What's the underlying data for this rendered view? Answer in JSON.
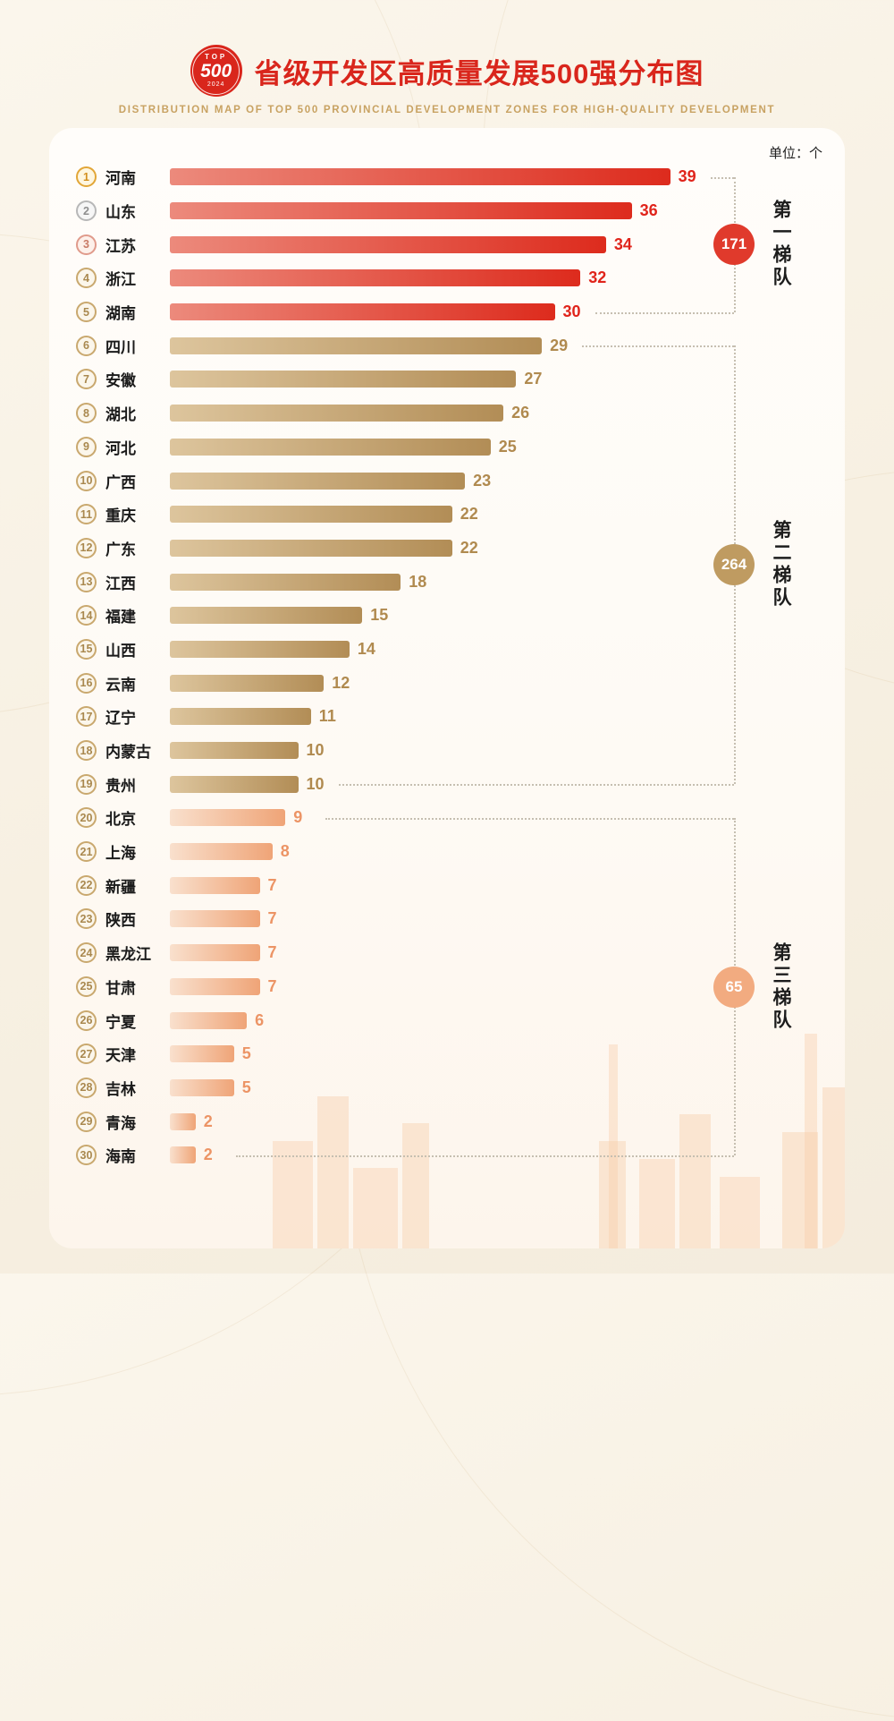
{
  "header": {
    "logo_top": "TOP",
    "logo_number": "500",
    "logo_year": "2024",
    "title": "省级开发区高质量发展500强分布图",
    "subtitle": "DISTRIBUTION MAP OF TOP 500 PROVINCIAL DEVELOPMENT ZONES FOR HIGH-QUALITY DEVELOPMENT"
  },
  "unit_label": "单位：个",
  "chart_data": {
    "type": "bar",
    "orientation": "horizontal",
    "title": "省级开发区高质量发展500强分布图",
    "unit": "个",
    "xlim": [
      0,
      39
    ],
    "rows": [
      {
        "rank": 1,
        "province": "河南",
        "value": 39,
        "tier": 1
      },
      {
        "rank": 2,
        "province": "山东",
        "value": 36,
        "tier": 1
      },
      {
        "rank": 3,
        "province": "江苏",
        "value": 34,
        "tier": 1
      },
      {
        "rank": 4,
        "province": "浙江",
        "value": 32,
        "tier": 1
      },
      {
        "rank": 5,
        "province": "湖南",
        "value": 30,
        "tier": 1
      },
      {
        "rank": 6,
        "province": "四川",
        "value": 29,
        "tier": 2
      },
      {
        "rank": 7,
        "province": "安徽",
        "value": 27,
        "tier": 2
      },
      {
        "rank": 8,
        "province": "湖北",
        "value": 26,
        "tier": 2
      },
      {
        "rank": 9,
        "province": "河北",
        "value": 25,
        "tier": 2
      },
      {
        "rank": 10,
        "province": "广西",
        "value": 23,
        "tier": 2
      },
      {
        "rank": 11,
        "province": "重庆",
        "value": 22,
        "tier": 2
      },
      {
        "rank": 12,
        "province": "广东",
        "value": 22,
        "tier": 2
      },
      {
        "rank": 13,
        "province": "江西",
        "value": 18,
        "tier": 2
      },
      {
        "rank": 14,
        "province": "福建",
        "value": 15,
        "tier": 2
      },
      {
        "rank": 15,
        "province": "山西",
        "value": 14,
        "tier": 2
      },
      {
        "rank": 16,
        "province": "云南",
        "value": 12,
        "tier": 2
      },
      {
        "rank": 17,
        "province": "辽宁",
        "value": 11,
        "tier": 2
      },
      {
        "rank": 18,
        "province": "内蒙古",
        "value": 10,
        "tier": 2
      },
      {
        "rank": 19,
        "province": "贵州",
        "value": 10,
        "tier": 2
      },
      {
        "rank": 20,
        "province": "北京",
        "value": 9,
        "tier": 3
      },
      {
        "rank": 21,
        "province": "上海",
        "value": 8,
        "tier": 3
      },
      {
        "rank": 22,
        "province": "新疆",
        "value": 7,
        "tier": 3
      },
      {
        "rank": 23,
        "province": "陕西",
        "value": 7,
        "tier": 3
      },
      {
        "rank": 24,
        "province": "黑龙江",
        "value": 7,
        "tier": 3
      },
      {
        "rank": 25,
        "province": "甘肃",
        "value": 7,
        "tier": 3
      },
      {
        "rank": 26,
        "province": "宁夏",
        "value": 6,
        "tier": 3
      },
      {
        "rank": 27,
        "province": "天津",
        "value": 5,
        "tier": 3
      },
      {
        "rank": 28,
        "province": "吉林",
        "value": 5,
        "tier": 3
      },
      {
        "rank": 29,
        "province": "青海",
        "value": 2,
        "tier": 3
      },
      {
        "rank": 30,
        "province": "海南",
        "value": 2,
        "tier": 3
      }
    ],
    "tiers": [
      {
        "id": 1,
        "label": "第一梯队",
        "total": 171,
        "rank_range": "1-5",
        "row_span": [
          0,
          4
        ],
        "color": "#e03a2c"
      },
      {
        "id": 2,
        "label": "第二梯队",
        "total": 264,
        "rank_range": "6-19",
        "row_span": [
          5,
          18
        ],
        "color": "#bf9b61"
      },
      {
        "id": 3,
        "label": "第三梯队",
        "total": 65,
        "rank_range": "20-30",
        "row_span": [
          19,
          29
        ],
        "color": "#f2ab80"
      }
    ]
  }
}
